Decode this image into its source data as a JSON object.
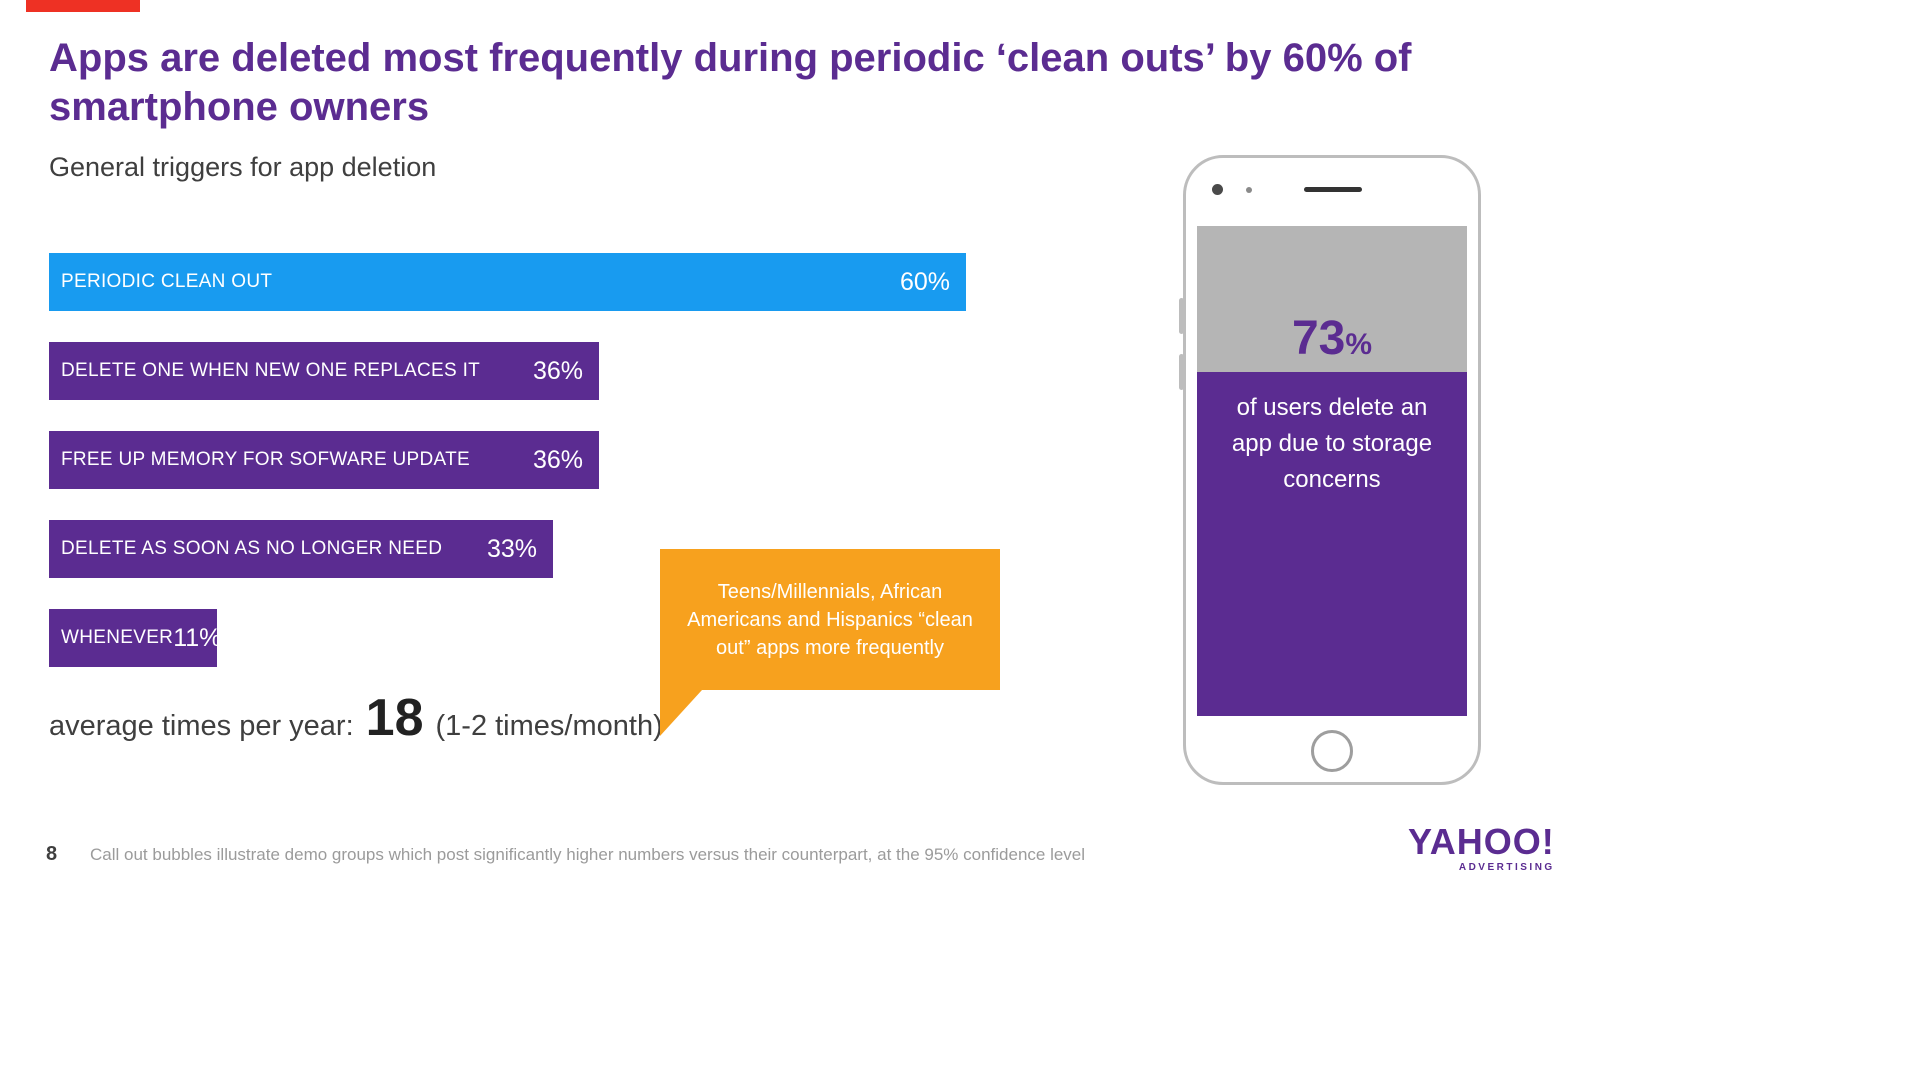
{
  "slide": {
    "title": "Apps are deleted most frequently during periodic ‘clean outs’ by 60% of smartphone owners",
    "subtitle": "General triggers for app deletion"
  },
  "chart_data": {
    "type": "bar",
    "orientation": "horizontal",
    "title": "General triggers for app deletion",
    "categories": [
      "PERIODIC CLEAN OUT",
      "DELETE ONE WHEN NEW ONE REPLACES IT",
      "FREE UP MEMORY FOR SOFWARE UPDATE",
      "DELETE AS SOON AS NO LONGER NEED",
      "WHENEVER"
    ],
    "values": [
      60,
      36,
      36,
      33,
      11
    ],
    "unit": "%",
    "bar_colors": [
      "#189bf0",
      "#5b2c91",
      "#5b2c91",
      "#5b2c91",
      "#5b2c91"
    ],
    "xlim": [
      0,
      65
    ],
    "grid": false,
    "legend": "none"
  },
  "average": {
    "prefix": "average times per year:",
    "value": "18",
    "suffix": "(1-2 times/month)"
  },
  "callout": {
    "text": "Teens/Millennials, African Americans and Hispanics “clean out” apps more frequently"
  },
  "phone": {
    "stat_value": "73",
    "stat_unit": "%",
    "caption": "of users delete an app due to storage concerns"
  },
  "footer": {
    "page_number": "8",
    "note": "Call out bubbles illustrate demo groups which post significantly higher numbers versus their counterpart, at the 95% confidence level",
    "brand": "YAHOO!",
    "brand_sub": "ADVERTISING"
  },
  "colors": {
    "accent_purple": "#5b2c91",
    "accent_blue": "#189bf0",
    "accent_orange": "#f7a11e",
    "accent_red": "#ee3124",
    "phone_gray": "#b5b5b5"
  }
}
